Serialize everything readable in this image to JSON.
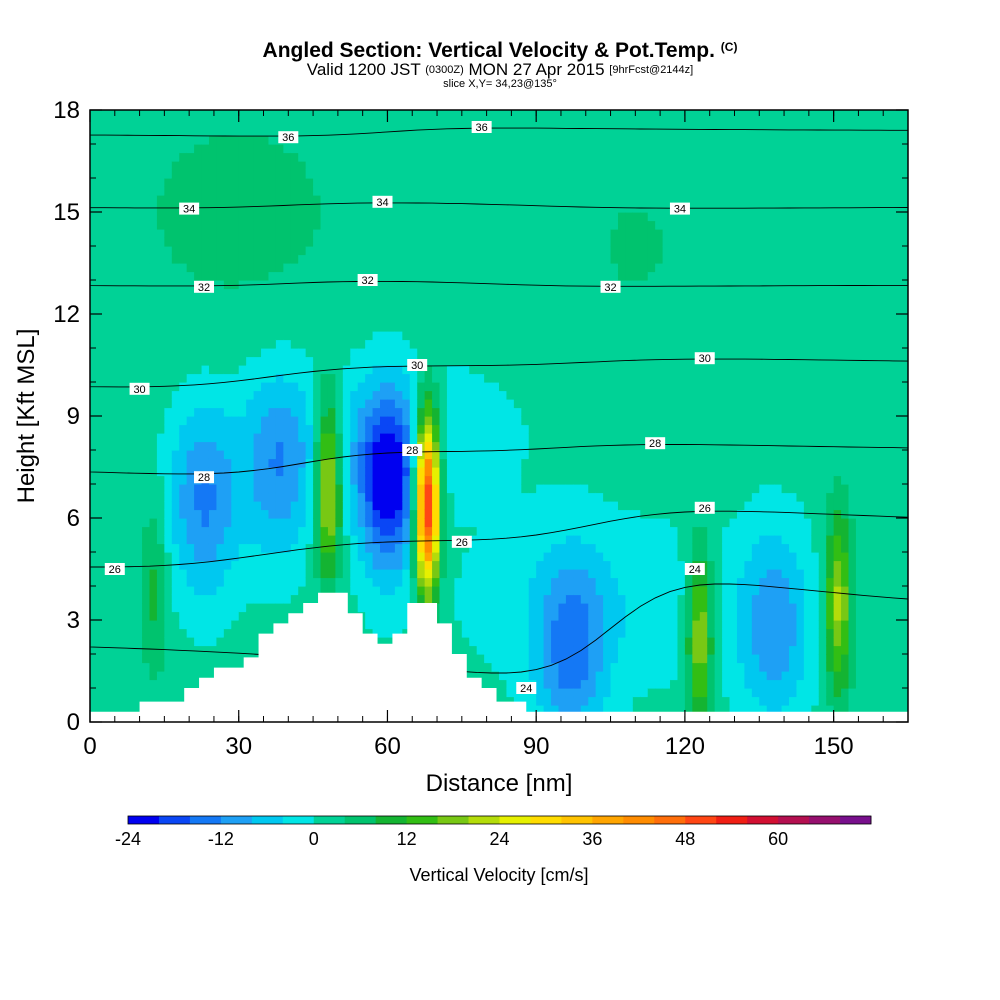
{
  "header": {
    "title_main": "Angled Section: Vertical Velocity & Pot.Temp.",
    "title_mark": "(C)",
    "valid_pre": "Valid 1200 JST",
    "valid_z": "(0300Z)",
    "valid_date": "MON 27 Apr 2015",
    "valid_fcst": "[9hrFcst@2144z]",
    "slice": "slice X,Y= 34,23@135°"
  },
  "chart_data": {
    "type": "heatmap",
    "xlabel": "Distance [nm]",
    "ylabel": "Height [Kft MSL]",
    "xlim": [
      0,
      165
    ],
    "ylim": [
      0,
      18
    ],
    "x_ticks": [
      0,
      30,
      60,
      90,
      120,
      150
    ],
    "y_ticks": [
      0,
      3,
      6,
      9,
      12,
      15,
      18
    ],
    "colorbar": {
      "label": "Vertical Velocity [cm/s]",
      "tick_labels": [
        "-24",
        "-12",
        "0",
        "12",
        "24",
        "36",
        "48",
        "60"
      ],
      "tick_values": [
        -24,
        -12,
        0,
        12,
        24,
        36,
        48,
        60
      ],
      "levels": [
        -24,
        -20,
        -16,
        -12,
        -8,
        -4,
        0,
        4,
        8,
        12,
        16,
        20,
        24,
        28,
        32,
        36,
        40,
        44,
        48,
        52,
        56,
        60,
        64,
        68
      ],
      "colors": [
        "#0000f0",
        "#0a46f5",
        "#1478f5",
        "#1ea0f5",
        "#00c8f0",
        "#00e6e6",
        "#00d296",
        "#00c36e",
        "#14b432",
        "#32be14",
        "#78c814",
        "#b4dc0a",
        "#e6f000",
        "#ffdc00",
        "#ffc300",
        "#ffa500",
        "#ff8c00",
        "#ff6e0a",
        "#ff4614",
        "#f01e14",
        "#d20f32",
        "#b40f50",
        "#960f6e",
        "#780f8c"
      ]
    },
    "velocity_features": [
      {
        "kind": "updraft",
        "x": 48,
        "y": 7.0,
        "peak": 24
      },
      {
        "kind": "updraft",
        "x": 68,
        "y": 6.5,
        "peak": 56
      },
      {
        "kind": "downdraft",
        "x": 60,
        "y": 7.0,
        "peak": -24
      },
      {
        "kind": "downdraft",
        "x": 38,
        "y": 7.5,
        "peak": -12
      },
      {
        "kind": "downdraft",
        "x": 23,
        "y": 6.5,
        "peak": -14
      },
      {
        "kind": "downdraft",
        "x": 97,
        "y": 2.0,
        "peak": -14
      },
      {
        "kind": "downdraft",
        "x": 138,
        "y": 2.8,
        "peak": -12
      },
      {
        "kind": "updraft",
        "x": 123,
        "y": 2.6,
        "peak": 20
      },
      {
        "kind": "updraft",
        "x": 151,
        "y": 3.5,
        "peak": 20
      },
      {
        "kind": "updraft",
        "x": 13,
        "y": 4.0,
        "peak": 8
      }
    ],
    "theta_contours": [
      {
        "value": 36,
        "label_positions": [
          [
            40,
            17.2
          ],
          [
            79,
            17.5
          ]
        ]
      },
      {
        "value": 34,
        "label_positions": [
          [
            20,
            15.1
          ],
          [
            59,
            15.3
          ],
          [
            119,
            15.1
          ]
        ]
      },
      {
        "value": 32,
        "label_positions": [
          [
            23,
            12.8
          ],
          [
            56,
            13.0
          ],
          [
            105,
            12.8
          ]
        ]
      },
      {
        "value": 30,
        "label_positions": [
          [
            10,
            9.8
          ],
          [
            66,
            10.5
          ],
          [
            124,
            10.7
          ]
        ]
      },
      {
        "value": 28,
        "label_positions": [
          [
            23,
            7.2
          ],
          [
            65,
            8.0
          ],
          [
            114,
            8.2
          ]
        ]
      },
      {
        "value": 26,
        "label_positions": [
          [
            5,
            4.5
          ],
          [
            75,
            5.3
          ],
          [
            124,
            6.3
          ]
        ]
      },
      {
        "value": 24,
        "label_positions": [
          [
            88,
            1.0
          ],
          [
            122,
            4.5
          ]
        ]
      }
    ],
    "terrain": [
      [
        10,
        0.6
      ],
      [
        19,
        1.0
      ],
      [
        22,
        1.3
      ],
      [
        25,
        1.6
      ],
      [
        31,
        1.9
      ],
      [
        34,
        2.6
      ],
      [
        37,
        2.9
      ],
      [
        40,
        3.2
      ],
      [
        43,
        3.5
      ],
      [
        46,
        3.8
      ],
      [
        52,
        3.2
      ],
      [
        55,
        2.6
      ],
      [
        58,
        2.3
      ],
      [
        61,
        2.6
      ],
      [
        64,
        3.5
      ],
      [
        70,
        2.9
      ],
      [
        73,
        2.0
      ],
      [
        76,
        1.3
      ],
      [
        79,
        1.0
      ],
      [
        82,
        0.6
      ],
      [
        88,
        0.3
      ]
    ]
  }
}
